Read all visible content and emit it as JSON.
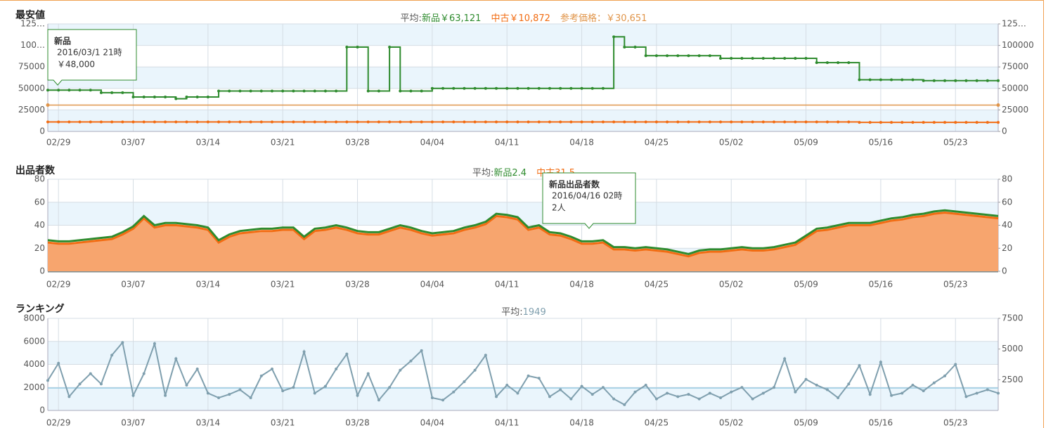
{
  "chart_data": [
    {
      "type": "line",
      "title": "最安値",
      "subtitle": [
        "平均:",
        "新品￥63,121",
        "中古￥10,872"
      ],
      "reference": {
        "value": 30651,
        "label": "参考価格：￥30,651",
        "color": "#e0954a"
      },
      "categories": [
        null,
        "02/29",
        null,
        null,
        null,
        null,
        null,
        null,
        "03/07",
        null,
        null,
        null,
        null,
        null,
        null,
        "03/14",
        null,
        null,
        null,
        null,
        null,
        null,
        "03/21",
        null,
        null,
        null,
        null,
        null,
        null,
        "03/28",
        null,
        null,
        null,
        null,
        null,
        null,
        "04/04",
        null,
        null,
        null,
        null,
        null,
        null,
        "04/11",
        null,
        null,
        null,
        null,
        null,
        null,
        "04/18",
        null,
        null,
        null,
        null,
        null,
        null,
        "04/25",
        null,
        null,
        null,
        null,
        null,
        null,
        "05/02",
        null,
        null,
        null,
        null,
        null,
        null,
        "05/09",
        null,
        null,
        null,
        null,
        null,
        null,
        "05/16",
        null,
        null,
        null,
        null,
        null,
        null,
        "05/23",
        null,
        null,
        null,
        null
      ],
      "series": [
        {
          "name": "新品",
          "color": "#2e8b2e",
          "step": true,
          "values": [
            48000,
            48000,
            48000,
            48000,
            48000,
            45000,
            45000,
            45000,
            40000,
            40000,
            40000,
            40000,
            38000,
            40000,
            40000,
            40000,
            47000,
            47000,
            47000,
            47000,
            47000,
            47000,
            47000,
            47000,
            47000,
            47000,
            47000,
            47000,
            98000,
            98000,
            47000,
            47000,
            98000,
            47000,
            47000,
            47000,
            50000,
            50000,
            50000,
            50000,
            50000,
            50000,
            50000,
            50000,
            50000,
            50000,
            50000,
            50000,
            50000,
            50000,
            50000,
            50000,
            50000,
            110000,
            98000,
            98000,
            88000,
            88000,
            88000,
            88000,
            88000,
            88000,
            88000,
            85000,
            85000,
            85000,
            85000,
            85000,
            85000,
            85000,
            85000,
            85000,
            80000,
            80000,
            80000,
            80000,
            60000,
            60000,
            60000,
            60000,
            60000,
            60000,
            59000,
            59000,
            59000,
            59000,
            59000,
            59000,
            59000,
            59000
          ]
        },
        {
          "name": "中古",
          "color": "#f26c12",
          "step": true,
          "values": [
            11000,
            11000,
            11000,
            11000,
            11000,
            11000,
            11000,
            11000,
            11000,
            11000,
            11000,
            11000,
            11000,
            11000,
            11000,
            11000,
            11000,
            11000,
            11000,
            11000,
            11000,
            11000,
            11000,
            11000,
            11000,
            11000,
            11000,
            11000,
            11000,
            11000,
            11000,
            11000,
            11000,
            11000,
            11000,
            11000,
            11000,
            11000,
            11000,
            11000,
            11000,
            11000,
            11000,
            11000,
            11000,
            11000,
            11000,
            11000,
            11000,
            11000,
            11000,
            11000,
            11000,
            11000,
            11000,
            11000,
            11000,
            11000,
            11000,
            11000,
            11000,
            11000,
            11000,
            11000,
            11000,
            11000,
            11000,
            11000,
            11000,
            11000,
            11000,
            11000,
            11000,
            11000,
            11000,
            11000,
            10500,
            10500,
            10500,
            10500,
            10500,
            10500,
            10500,
            10500,
            10500,
            10500,
            10500,
            10500,
            10500,
            10500
          ]
        }
      ],
      "ylim": [
        0,
        125000
      ],
      "yticks": [
        0,
        25000,
        50000,
        75000,
        {
          "value": 100000,
          "label": "100…"
        },
        {
          "value": 125000,
          "label": "125…"
        }
      ],
      "y2lim": [
        0,
        125000
      ],
      "y2ticks": [
        0,
        25000,
        50000,
        75000,
        100000,
        {
          "value": 125000,
          "label": "125…"
        }
      ],
      "grid": true,
      "tooltip": {
        "title": "新品",
        "lines": [
          "2016/03/1 21時",
          "￥48,000"
        ]
      }
    },
    {
      "type": "area",
      "title": "出品者数",
      "subtitle": [
        "平均:",
        "新品2.4",
        "中古31.5"
      ],
      "categories": [
        null,
        "02/29",
        null,
        null,
        null,
        null,
        null,
        null,
        "03/07",
        null,
        null,
        null,
        null,
        null,
        null,
        "03/14",
        null,
        null,
        null,
        null,
        null,
        null,
        "03/21",
        null,
        null,
        null,
        null,
        null,
        null,
        "03/28",
        null,
        null,
        null,
        null,
        null,
        null,
        "04/04",
        null,
        null,
        null,
        null,
        null,
        null,
        "04/11",
        null,
        null,
        null,
        null,
        null,
        null,
        "04/18",
        null,
        null,
        null,
        null,
        null,
        null,
        "04/25",
        null,
        null,
        null,
        null,
        null,
        null,
        "05/02",
        null,
        null,
        null,
        null,
        null,
        null,
        "05/09",
        null,
        null,
        null,
        null,
        null,
        null,
        "05/16",
        null,
        null,
        null,
        null,
        null,
        null,
        "05/23",
        null,
        null,
        null,
        null
      ],
      "stacked": true,
      "series": [
        {
          "name": "新品",
          "color": "#2e8b2e",
          "values": [
            2,
            2,
            2,
            2,
            2,
            2,
            2,
            2,
            2,
            2,
            2,
            2,
            2,
            2,
            2,
            2,
            2,
            2,
            2,
            2,
            2,
            2,
            2,
            2,
            2,
            2,
            2,
            2,
            2,
            2,
            2,
            2,
            2,
            2,
            2,
            2,
            2,
            2,
            2,
            2,
            2,
            2,
            2,
            2,
            2,
            2,
            2,
            2,
            2,
            2,
            2,
            2,
            2,
            2,
            2,
            2,
            2,
            2,
            2,
            2,
            2,
            2,
            2,
            2,
            2,
            2,
            2,
            2,
            2,
            2,
            2,
            2,
            2,
            2,
            2,
            2,
            2,
            2,
            2,
            2,
            2,
            2,
            2,
            2,
            2,
            2,
            2,
            2,
            2,
            2
          ]
        },
        {
          "name": "中古",
          "color": "#f26c12",
          "fill": "#f7a56e",
          "values": [
            25,
            24,
            24,
            25,
            26,
            27,
            28,
            32,
            37,
            46,
            38,
            40,
            40,
            39,
            38,
            36,
            25,
            30,
            33,
            34,
            35,
            35,
            36,
            36,
            28,
            35,
            36,
            38,
            36,
            33,
            32,
            32,
            35,
            38,
            36,
            33,
            31,
            32,
            33,
            36,
            38,
            41,
            48,
            47,
            45,
            36,
            38,
            32,
            31,
            28,
            24,
            24,
            25,
            19,
            19,
            18,
            19,
            18,
            17,
            15,
            13,
            16,
            17,
            17,
            18,
            19,
            18,
            18,
            19,
            21,
            23,
            29,
            35,
            36,
            38,
            40,
            40,
            40,
            42,
            44,
            45,
            47,
            48,
            50,
            51,
            50,
            49,
            48,
            47,
            46
          ]
        },
        {
          "color": "#7f8c8d",
          "values": [
            0,
            0,
            0,
            0,
            0,
            0,
            0,
            0,
            0,
            0,
            0,
            0,
            0,
            0,
            0,
            0,
            0,
            0,
            0,
            0,
            0,
            0,
            0,
            0,
            0,
            0,
            0,
            0,
            0,
            0,
            0,
            0,
            0,
            0,
            0,
            0,
            0,
            0,
            0,
            0,
            0,
            0,
            0,
            0,
            0,
            0,
            0,
            0,
            0,
            0,
            0,
            0,
            0,
            0,
            0,
            0,
            0,
            0,
            0,
            0,
            0,
            0,
            0,
            0,
            0,
            0,
            0,
            0,
            0,
            0,
            0,
            0,
            0,
            0,
            0,
            0,
            0,
            0,
            0,
            0,
            0,
            0,
            0,
            0,
            0,
            0,
            0,
            0,
            0,
            0
          ]
        }
      ],
      "ylim": [
        0,
        80
      ],
      "yticks": [
        0,
        20,
        40,
        60,
        80
      ],
      "y2lim": [
        0,
        80
      ],
      "y2ticks": [
        0,
        20,
        40,
        60,
        80
      ],
      "grid": true,
      "tooltip": {
        "title": "新品出品者数",
        "lines": [
          "2016/04/16 02時",
          "2人"
        ]
      }
    },
    {
      "type": "line",
      "title": "ランキング",
      "subtitle": [
        "平均:"
      ],
      "average": 1949,
      "categories": [
        null,
        "02/29",
        null,
        null,
        null,
        null,
        null,
        null,
        "03/07",
        null,
        null,
        null,
        null,
        null,
        null,
        "03/14",
        null,
        null,
        null,
        null,
        null,
        null,
        "03/21",
        null,
        null,
        null,
        null,
        null,
        null,
        "03/28",
        null,
        null,
        null,
        null,
        null,
        null,
        "04/04",
        null,
        null,
        null,
        null,
        null,
        null,
        "04/11",
        null,
        null,
        null,
        null,
        null,
        null,
        "04/18",
        null,
        null,
        null,
        null,
        null,
        null,
        "04/25",
        null,
        null,
        null,
        null,
        null,
        null,
        "05/02",
        null,
        null,
        null,
        null,
        null,
        null,
        "05/09",
        null,
        null,
        null,
        null,
        null,
        null,
        "05/16",
        null,
        null,
        null,
        null,
        null,
        null,
        "05/23",
        null,
        null,
        null,
        null
      ],
      "series": [
        {
          "color": "#7f9fae",
          "values": [
            2600,
            4100,
            1200,
            2300,
            3200,
            2300,
            4800,
            5900,
            1300,
            3200,
            5800,
            1300,
            4500,
            2200,
            3600,
            1500,
            1100,
            1400,
            1800,
            1100,
            3000,
            3600,
            1700,
            2000,
            5100,
            1500,
            2100,
            3600,
            4900,
            1300,
            3200,
            900,
            2000,
            3500,
            4300,
            5200,
            1100,
            900,
            1600,
            2500,
            3500,
            4800,
            1200,
            2200,
            1500,
            3000,
            2800,
            1200,
            1800,
            1000,
            2100,
            1400,
            2000,
            1000,
            500,
            1600,
            2200,
            1000,
            1500,
            1200,
            1400,
            1000,
            1500,
            1100,
            1600,
            2000,
            1000,
            1500,
            2000,
            4500,
            1600,
            2700,
            2200,
            1800,
            1100,
            2300,
            3900,
            1400,
            4200,
            1300,
            1500,
            2200,
            1700,
            2400,
            3000,
            4000,
            1200,
            1500,
            1800,
            1500
          ]
        }
      ],
      "ylim": [
        0,
        8000
      ],
      "yticks": [
        0,
        2000,
        4000,
        6000,
        8000
      ],
      "y2lim": [
        0,
        7500
      ],
      "y2ticks": [
        2500,
        5000,
        7500
      ],
      "grid": true
    }
  ]
}
